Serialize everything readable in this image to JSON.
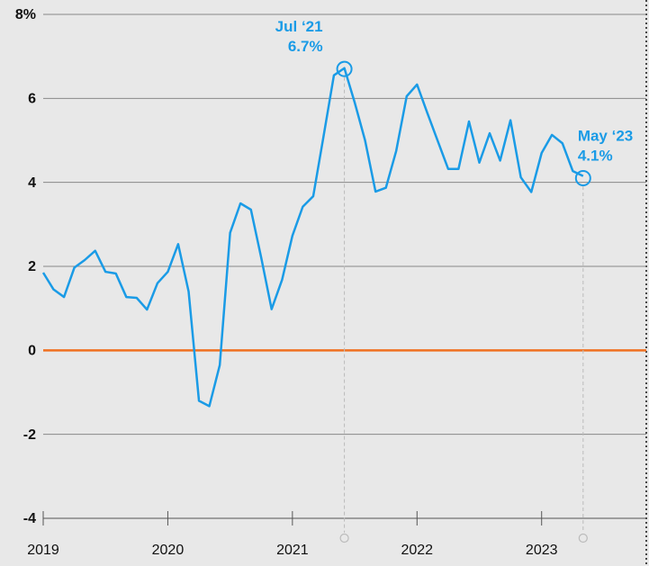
{
  "chart_data": {
    "type": "line",
    "x": [
      2019,
      2019.083,
      2019.167,
      2019.25,
      2019.333,
      2019.417,
      2019.5,
      2019.583,
      2019.667,
      2019.75,
      2019.833,
      2019.917,
      2020,
      2020.083,
      2020.167,
      2020.25,
      2020.333,
      2020.417,
      2020.5,
      2020.583,
      2020.667,
      2020.75,
      2020.833,
      2020.917,
      2021,
      2021.083,
      2021.167,
      2021.25,
      2021.333,
      2021.417,
      2021.5,
      2021.583,
      2021.667,
      2021.75,
      2021.833,
      2021.917,
      2022,
      2022.083,
      2022.167,
      2022.25,
      2022.333,
      2022.417,
      2022.5,
      2022.583,
      2022.667,
      2022.75,
      2022.833,
      2022.917,
      2023,
      2023.083,
      2023.167,
      2023.25,
      2023.333
    ],
    "series": [
      {
        "color": "#1a9be6",
        "values": [
          1.85,
          1.45,
          1.27,
          1.97,
          2.15,
          2.37,
          1.87,
          1.83,
          1.27,
          1.25,
          0.97,
          1.6,
          1.87,
          2.53,
          1.4,
          -1.2,
          -1.33,
          -0.35,
          2.8,
          3.5,
          3.35,
          2.2,
          0.98,
          1.68,
          2.73,
          3.42,
          3.67,
          5.1,
          6.55,
          6.72,
          5.9,
          5.0,
          3.78,
          3.87,
          4.75,
          6.05,
          6.33,
          5.65,
          4.98,
          4.32,
          4.32,
          5.45,
          4.47,
          5.17,
          4.52,
          5.48,
          4.12,
          3.77,
          4.7,
          5.13,
          4.93,
          4.27,
          4.15
        ]
      }
    ],
    "xlim": [
      2019,
      2023.84
    ],
    "xticks": [
      2019,
      2020,
      2021,
      2022,
      2023
    ],
    "ylim": [
      -4,
      8
    ],
    "yticks": [
      {
        "value": 8,
        "label": "8%"
      },
      6,
      4,
      2,
      0,
      -2,
      -4
    ],
    "zero_line_color": "#f07020",
    "grid": true,
    "annotations": [
      {
        "text": "Jul ‘21",
        "x": 2021.417,
        "value": 6.7,
        "value_label": "6.7%"
      },
      {
        "text": "May ‘23",
        "x": 2023.333,
        "value": 4.1,
        "value_label": "4.1%"
      }
    ]
  }
}
